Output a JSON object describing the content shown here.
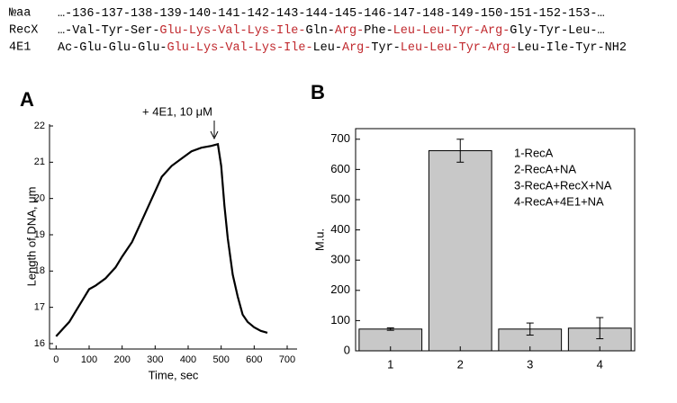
{
  "sequence": {
    "highlight_color": "#c0282d",
    "rows": [
      {
        "label": "№aa",
        "segments": [
          {
            "text": "…-136-137-138-139-140-141-142-143-144-145-146-147-148-149-150-151-152-153-…",
            "highlight": false
          }
        ]
      },
      {
        "label": "RecX",
        "segments": [
          {
            "text": "…-Val-Tyr-Ser-",
            "highlight": false
          },
          {
            "text": "Glu-Lys-Val-Lys-Ile-",
            "highlight": true
          },
          {
            "text": "Gln-",
            "highlight": false
          },
          {
            "text": "Arg-",
            "highlight": true
          },
          {
            "text": "Phe-",
            "highlight": false
          },
          {
            "text": "Leu-Leu-Tyr-Arg-",
            "highlight": true
          },
          {
            "text": "Gly-Tyr-Leu-…",
            "highlight": false
          }
        ]
      },
      {
        "label": "4E1",
        "segments": [
          {
            "text": "Ac-Glu-Glu-Glu-",
            "highlight": false
          },
          {
            "text": "Glu-Lys-Val-Lys-Ile-",
            "highlight": true
          },
          {
            "text": "Leu-",
            "highlight": false
          },
          {
            "text": "Arg-",
            "highlight": true
          },
          {
            "text": "Tyr-",
            "highlight": false
          },
          {
            "text": "Leu-Leu-Tyr-Arg-",
            "highlight": true
          },
          {
            "text": "Leu-Ile-Tyr-NH2",
            "highlight": false
          }
        ]
      }
    ]
  },
  "chart_data": [
    {
      "type": "line",
      "panel": "A",
      "annotation": "+ 4E1, 10 μM",
      "xlabel": "Time, sec",
      "ylabel": "Length of DNA, μm",
      "color": "#000000",
      "x": [
        0,
        20,
        40,
        60,
        80,
        100,
        120,
        150,
        180,
        200,
        230,
        260,
        290,
        320,
        350,
        380,
        410,
        440,
        470,
        490,
        500,
        510,
        520,
        535,
        550,
        565,
        580,
        600,
        620,
        640
      ],
      "values": [
        16.2,
        16.4,
        16.6,
        16.9,
        17.2,
        17.5,
        17.6,
        17.8,
        18.1,
        18.4,
        18.8,
        19.4,
        20.0,
        20.6,
        20.9,
        21.1,
        21.3,
        21.4,
        21.45,
        21.5,
        20.9,
        19.8,
        18.9,
        17.9,
        17.3,
        16.8,
        16.6,
        16.45,
        16.35,
        16.3
      ],
      "xlim": [
        -20,
        730
      ],
      "xticks": [
        0,
        100,
        200,
        300,
        400,
        500,
        600,
        700
      ],
      "ylim": [
        15.85,
        22.05
      ],
      "yticks": [
        16,
        17,
        18,
        19,
        20,
        21,
        22
      ]
    },
    {
      "type": "bar",
      "panel": "B",
      "ylabel": "M.u.",
      "color": "#c8c8c8",
      "categories": [
        "1",
        "2",
        "3",
        "4"
      ],
      "values": [
        72,
        662,
        72,
        75
      ],
      "errors": [
        4,
        38,
        20,
        35
      ],
      "legend_lines": [
        "1-RecA",
        "2-RecA+NA",
        "3-RecA+RecX+NA",
        "4-RecA+4E1+NA"
      ],
      "ylim": [
        0,
        735
      ],
      "yticks": [
        0,
        100,
        200,
        300,
        400,
        500,
        600,
        700
      ]
    }
  ]
}
